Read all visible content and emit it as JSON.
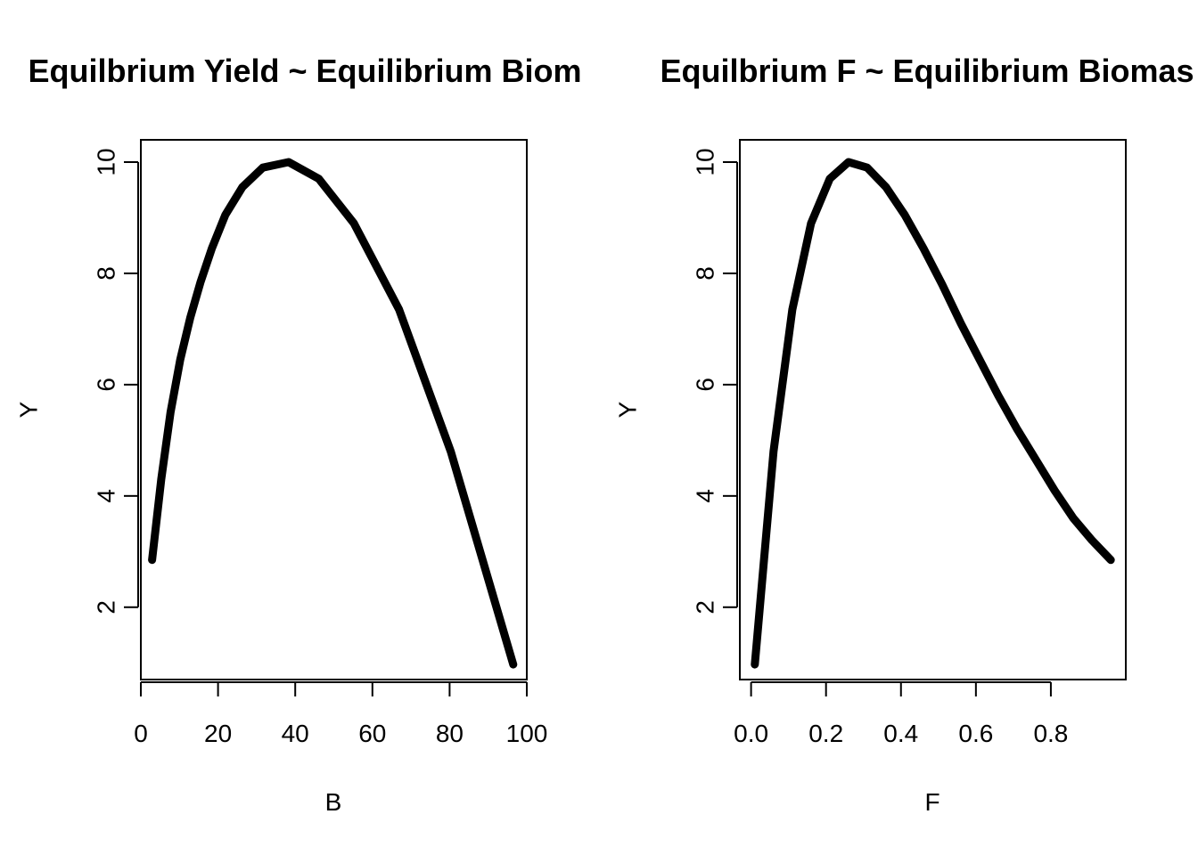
{
  "chart_data": [
    {
      "type": "line",
      "title": "Equilbrium Yield ~ Equilibrium Biom",
      "xlabel": "B",
      "ylabel": "Y",
      "xlim": [
        0,
        100
      ],
      "ylim": [
        0.7,
        10.4
      ],
      "x_ticks": [
        0,
        20,
        40,
        60,
        80,
        100
      ],
      "y_ticks": [
        2,
        4,
        6,
        8,
        10
      ],
      "x_tick_labels": [
        "0",
        "20",
        "40",
        "60",
        "80",
        "100"
      ],
      "y_tick_labels": [
        "2",
        "4",
        "6",
        "8",
        "10"
      ],
      "grid": false,
      "x": [
        2.9,
        5.3,
        7.7,
        10.2,
        12.8,
        15.5,
        18.4,
        21.9,
        26.3,
        31.6,
        38.3,
        46.1,
        55.2,
        66.9,
        80.3,
        96.5
      ],
      "y": [
        2.85,
        4.3,
        5.5,
        6.45,
        7.2,
        7.85,
        8.45,
        9.05,
        9.55,
        9.9,
        10.0,
        9.7,
        8.9,
        7.35,
        4.8,
        0.97
      ]
    },
    {
      "type": "line",
      "title": "Equilbrium F ~ Equilibrium Biomas",
      "xlabel": "F",
      "ylabel": "Y",
      "xlim": [
        -0.03,
        1.0
      ],
      "ylim": [
        0.7,
        10.4
      ],
      "x_ticks": [
        0.0,
        0.2,
        0.4,
        0.6,
        0.8
      ],
      "y_ticks": [
        2,
        4,
        6,
        8,
        10
      ],
      "x_tick_labels": [
        "0.0",
        "0.2",
        "0.4",
        "0.6",
        "0.8"
      ],
      "y_tick_labels": [
        "2",
        "4",
        "6",
        "8",
        "10"
      ],
      "grid": false,
      "x": [
        0.01,
        0.06,
        0.11,
        0.16,
        0.21,
        0.26,
        0.31,
        0.36,
        0.41,
        0.46,
        0.51,
        0.56,
        0.61,
        0.66,
        0.71,
        0.76,
        0.81,
        0.86,
        0.91,
        0.96
      ],
      "y": [
        0.97,
        4.8,
        7.35,
        8.9,
        9.7,
        10.0,
        9.9,
        9.55,
        9.05,
        8.45,
        7.8,
        7.1,
        6.45,
        5.8,
        5.2,
        4.65,
        4.1,
        3.6,
        3.2,
        2.85
      ]
    }
  ]
}
